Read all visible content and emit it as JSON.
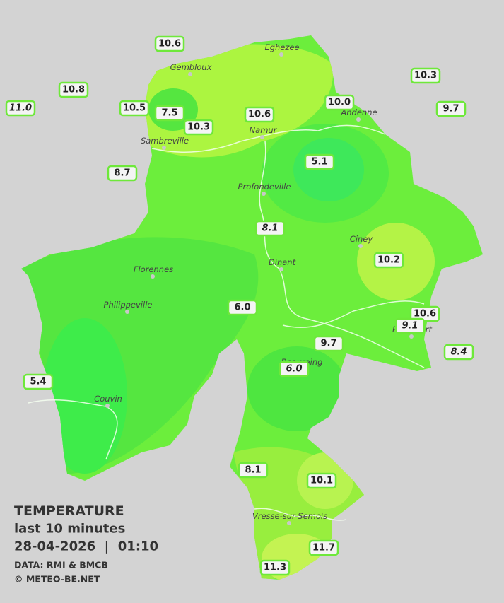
{
  "legend": {
    "title": "TEMPERATURE",
    "subtitle": "last 10 minutes",
    "datetime": "28-04-2026  |  01:10",
    "source": "DATA: RMI & BMCB",
    "copyright": "© METEO-BE.NET"
  },
  "cities": [
    "Eghezee",
    "Gembloux",
    "Andenne",
    "Namur",
    "Sambreville",
    "Profondeville",
    "Ciney",
    "Dinant",
    "Florennes",
    "Philippeville",
    "Rochefort",
    "Beauraing",
    "Couvin",
    "Vresse-sur-Semois"
  ],
  "stations": [
    {
      "label": "10.6"
    },
    {
      "label": "10.8"
    },
    {
      "label": "11.0",
      "italic": true
    },
    {
      "label": "10.5"
    },
    {
      "label": "7.5"
    },
    {
      "label": "10.3"
    },
    {
      "label": "10.6"
    },
    {
      "label": "10.0"
    },
    {
      "label": "10.3"
    },
    {
      "label": "9.7"
    },
    {
      "label": "8.7"
    },
    {
      "label": "5.1"
    },
    {
      "label": "8.1",
      "italic": true
    },
    {
      "label": "10.2"
    },
    {
      "label": "6.0"
    },
    {
      "label": "10.6"
    },
    {
      "label": "9.1",
      "italic": true
    },
    {
      "label": "9.7"
    },
    {
      "label": "8.4",
      "italic": true
    },
    {
      "label": "6.0",
      "italic": true
    },
    {
      "label": "5.4"
    },
    {
      "label": "8.1"
    },
    {
      "label": "10.1"
    },
    {
      "label": "11.7"
    },
    {
      "label": "11.3"
    }
  ]
}
